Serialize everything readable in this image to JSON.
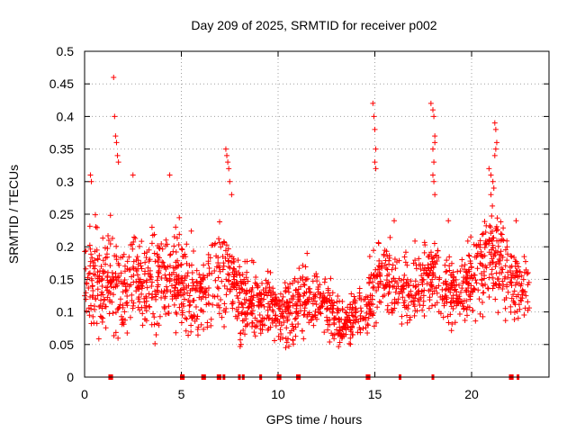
{
  "chart_data": {
    "type": "scatter",
    "title": "Day 209 of 2025, SRMTID for receiver p002",
    "xlabel": "GPS time / hours",
    "ylabel": "SRMTID / TECUs",
    "xlim": [
      0,
      24
    ],
    "ylim": [
      0,
      0.5
    ],
    "xticks": [
      "0",
      "5",
      "10",
      "15",
      "20"
    ],
    "xtick_values": [
      0,
      5,
      10,
      15,
      20
    ],
    "yticks": [
      "0",
      "0.05",
      "0.1",
      "0.15",
      "0.2",
      "0.25",
      "0.3",
      "0.35",
      "0.4",
      "0.45",
      "0.5"
    ],
    "ytick_values": [
      0,
      0.05,
      0.1,
      0.15,
      0.2,
      0.25,
      0.3,
      0.35,
      0.4,
      0.45,
      0.5
    ],
    "grid": true,
    "marker": "+",
    "marker_color": "#ff0000",
    "series": [
      {
        "name": "SRMTID",
        "profile": {
          "x": [
            0,
            0.5,
            1,
            1.5,
            2,
            2.5,
            3,
            3.5,
            4,
            4.5,
            5,
            5.5,
            6,
            6.5,
            7,
            7.5,
            8,
            8.5,
            9,
            9.5,
            10,
            10.5,
            11,
            11.5,
            12,
            12.5,
            13,
            13.5,
            14,
            14.5,
            15,
            15.5,
            16,
            16.5,
            17,
            17.5,
            18,
            18.5,
            19,
            19.5,
            20,
            20.5,
            21,
            21.5,
            22,
            22.5,
            23
          ],
          "y_center": [
            0.16,
            0.15,
            0.14,
            0.15,
            0.13,
            0.15,
            0.13,
            0.15,
            0.14,
            0.16,
            0.15,
            0.14,
            0.13,
            0.15,
            0.15,
            0.16,
            0.12,
            0.12,
            0.11,
            0.11,
            0.1,
            0.1,
            0.11,
            0.12,
            0.12,
            0.11,
            0.09,
            0.085,
            0.09,
            0.1,
            0.14,
            0.16,
            0.14,
            0.13,
            0.13,
            0.15,
            0.15,
            0.14,
            0.13,
            0.13,
            0.15,
            0.17,
            0.19,
            0.18,
            0.15,
            0.13,
            0.13
          ],
          "y_spread": [
            0.05,
            0.06,
            0.05,
            0.05,
            0.05,
            0.05,
            0.05,
            0.05,
            0.05,
            0.05,
            0.05,
            0.05,
            0.05,
            0.05,
            0.05,
            0.05,
            0.04,
            0.04,
            0.04,
            0.035,
            0.035,
            0.035,
            0.035,
            0.035,
            0.035,
            0.03,
            0.025,
            0.025,
            0.025,
            0.03,
            0.04,
            0.04,
            0.04,
            0.035,
            0.035,
            0.04,
            0.04,
            0.04,
            0.035,
            0.035,
            0.04,
            0.05,
            0.06,
            0.05,
            0.045,
            0.035,
            0.035
          ]
        },
        "spikes": [
          {
            "x": 1.5,
            "y": 0.46
          },
          {
            "x": 1.55,
            "y": 0.4
          },
          {
            "x": 1.6,
            "y": 0.37
          },
          {
            "x": 1.65,
            "y": 0.36
          },
          {
            "x": 1.7,
            "y": 0.34
          },
          {
            "x": 1.75,
            "y": 0.33
          },
          {
            "x": 0.3,
            "y": 0.31
          },
          {
            "x": 0.35,
            "y": 0.3
          },
          {
            "x": 2.5,
            "y": 0.31
          },
          {
            "x": 4.4,
            "y": 0.31
          },
          {
            "x": 7.3,
            "y": 0.35
          },
          {
            "x": 7.35,
            "y": 0.34
          },
          {
            "x": 7.4,
            "y": 0.33
          },
          {
            "x": 7.45,
            "y": 0.32
          },
          {
            "x": 7.5,
            "y": 0.3
          },
          {
            "x": 7.6,
            "y": 0.28
          },
          {
            "x": 14.9,
            "y": 0.42
          },
          {
            "x": 14.95,
            "y": 0.4
          },
          {
            "x": 15.0,
            "y": 0.38
          },
          {
            "x": 15.05,
            "y": 0.35
          },
          {
            "x": 15.0,
            "y": 0.33
          },
          {
            "x": 15.05,
            "y": 0.32
          },
          {
            "x": 17.9,
            "y": 0.42
          },
          {
            "x": 18.0,
            "y": 0.41
          },
          {
            "x": 18.05,
            "y": 0.4
          },
          {
            "x": 18.1,
            "y": 0.37
          },
          {
            "x": 18.1,
            "y": 0.36
          },
          {
            "x": 18.0,
            "y": 0.35
          },
          {
            "x": 18.05,
            "y": 0.33
          },
          {
            "x": 18.0,
            "y": 0.31
          },
          {
            "x": 18.05,
            "y": 0.3
          },
          {
            "x": 18.1,
            "y": 0.28
          },
          {
            "x": 21.2,
            "y": 0.39
          },
          {
            "x": 21.25,
            "y": 0.38
          },
          {
            "x": 21.3,
            "y": 0.36
          },
          {
            "x": 21.25,
            "y": 0.35
          },
          {
            "x": 21.2,
            "y": 0.34
          },
          {
            "x": 20.9,
            "y": 0.32
          },
          {
            "x": 21.0,
            "y": 0.31
          },
          {
            "x": 21.1,
            "y": 0.3
          },
          {
            "x": 21.15,
            "y": 0.29
          },
          {
            "x": 21.0,
            "y": 0.28
          },
          {
            "x": 16.0,
            "y": 0.24
          },
          {
            "x": 18.8,
            "y": 0.24
          },
          {
            "x": 22.3,
            "y": 0.24
          },
          {
            "x": 11.5,
            "y": 0.19
          }
        ],
        "zero_x": [
          1.3,
          1.4,
          5.0,
          5.1,
          6.1,
          6.2,
          6.9,
          7.0,
          7.2,
          8.0,
          8.2,
          9.1,
          10.0,
          10.1,
          11.0,
          11.1,
          14.6,
          14.7,
          16.3,
          18.0,
          22.0,
          22.1,
          22.4
        ]
      }
    ]
  }
}
